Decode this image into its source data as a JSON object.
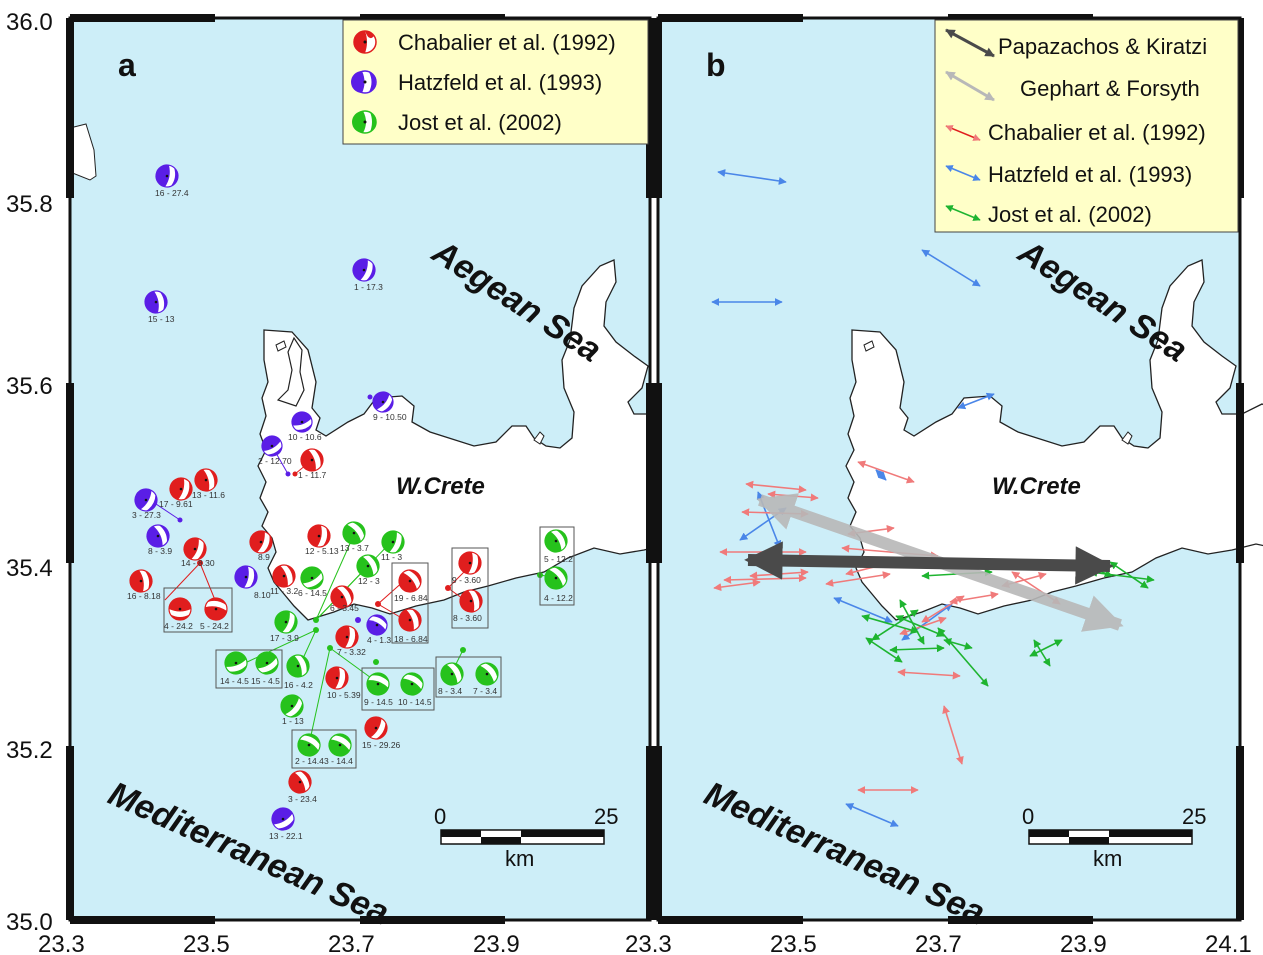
{
  "colors": {
    "sea": "#cdeef8",
    "land": "#ffffff",
    "chabalier": "#e01e1e",
    "hatzfeld": "#5a1ee6",
    "jost": "#26c21c",
    "legend_bg": "#ffffc8",
    "papazachos": "#4a4a4a",
    "gephart": "#b8b8b8",
    "arrow_chabalier": "#f07a7a",
    "arrow_hatzfeld": "#4a86e8",
    "arrow_jost": "#1eb430"
  },
  "axes": {
    "y_ticks": [
      "36.0",
      "35.8",
      "35.6",
      "35.4",
      "35.2",
      "35.0"
    ],
    "x_ticks_a": [
      "23.3",
      "23.5",
      "23.7",
      "23.9"
    ],
    "x_ticks_b": [
      "23.3",
      "23.5",
      "23.7",
      "23.9",
      "24.1"
    ]
  },
  "panel_a": {
    "letter": "a",
    "sea_north": "Aegean Sea",
    "sea_south": "Mediterranean Sea",
    "region": "W.Crete",
    "legend": [
      {
        "label": "Chabalier et al. (1992)",
        "color": "#e01e1e"
      },
      {
        "label": "Hatzfeld et al. (1993)",
        "color": "#5a1ee6"
      },
      {
        "label": "Jost et al. (2002)",
        "color": "#26c21c"
      }
    ],
    "scale": {
      "start": "0",
      "end": "25",
      "unit": "km"
    },
    "events": [
      {
        "label": "16 - 27.4",
        "set": "hatzfeld"
      },
      {
        "label": "15 - 13",
        "set": "hatzfeld"
      },
      {
        "label": "1 - 17.3",
        "set": "hatzfeld"
      },
      {
        "label": "9 - 10.50",
        "set": "hatzfeld"
      },
      {
        "label": "10 - 10.6",
        "set": "hatzfeld"
      },
      {
        "label": "2 - 12.70",
        "set": "hatzfeld"
      },
      {
        "label": "1 - 11.7",
        "set": "chabalier"
      },
      {
        "label": "17 - 9.61",
        "set": "chabalier"
      },
      {
        "label": "13 - 11.6",
        "set": "chabalier"
      },
      {
        "label": "3 - 27.3",
        "set": "hatzfeld"
      },
      {
        "label": "8 - 3.9",
        "set": "hatzfeld"
      },
      {
        "label": "14 - 8.30",
        "set": "chabalier"
      },
      {
        "label": "16 - 8.18",
        "set": "chabalier"
      },
      {
        "label": "4 - 24.2",
        "set": "chabalier"
      },
      {
        "label": "5 - 24.2",
        "set": "chabalier"
      },
      {
        "label": "8.9",
        "set": "chabalier"
      },
      {
        "label": "8.10",
        "set": "hatzfeld"
      },
      {
        "label": "11 - 3.2",
        "set": "chabalier"
      },
      {
        "label": "12 - 5.13",
        "set": "chabalier"
      },
      {
        "label": "13 - 3.7",
        "set": "jost"
      },
      {
        "label": "11 - 3",
        "set": "jost"
      },
      {
        "label": "12 - 3",
        "set": "jost"
      },
      {
        "label": "6 - 14.5",
        "set": "jost"
      },
      {
        "label": "6 - 3.45",
        "set": "chabalier"
      },
      {
        "label": "17 - 3.9",
        "set": "jost"
      },
      {
        "label": "7 - 3.32",
        "set": "chabalier"
      },
      {
        "label": "4 - 1.3",
        "set": "hatzfeld"
      },
      {
        "label": "19 - 6.84",
        "set": "chabalier"
      },
      {
        "label": "18 - 6.84",
        "set": "chabalier"
      },
      {
        "label": "9 - 3.60",
        "set": "chabalier"
      },
      {
        "label": "8 - 3.60",
        "set": "chabalier"
      },
      {
        "label": "5 - 12.2",
        "set": "jost"
      },
      {
        "label": "4 - 12.2",
        "set": "jost"
      },
      {
        "label": "14 - 4.5",
        "set": "jost"
      },
      {
        "label": "15 - 4.5",
        "set": "jost"
      },
      {
        "label": "16 - 4.2",
        "set": "jost"
      },
      {
        "label": "10 - 5.39",
        "set": "chabalier"
      },
      {
        "label": "1 - 13",
        "set": "jost"
      },
      {
        "label": "9 - 14.5",
        "set": "jost"
      },
      {
        "label": "10 - 14.5",
        "set": "jost"
      },
      {
        "label": "8 - 3.4",
        "set": "jost"
      },
      {
        "label": "7 - 3.4",
        "set": "jost"
      },
      {
        "label": "2 - 14.4",
        "set": "jost"
      },
      {
        "label": "3 - 14.4",
        "set": "jost"
      },
      {
        "label": "15 - 29.26",
        "set": "chabalier"
      },
      {
        "label": "3 - 23.4",
        "set": "chabalier"
      },
      {
        "label": "13 - 22.1",
        "set": "hatzfeld"
      }
    ]
  },
  "panel_b": {
    "letter": "b",
    "sea_north": "Aegean Sea",
    "sea_south": "Mediterranean Sea",
    "region": "W.Crete",
    "legend": [
      {
        "label": "Papazachos & Kiratzi",
        "color": "#4a4a4a"
      },
      {
        "label": "Gephart & Forsyth",
        "color": "#b8b8b8"
      },
      {
        "label": "Chabalier et al. (1992)",
        "color": "#f07a7a"
      },
      {
        "label": "Hatzfeld et al. (1993)",
        "color": "#4a86e8"
      },
      {
        "label": "Jost et al. (2002)",
        "color": "#1eb430"
      }
    ],
    "scale": {
      "start": "0",
      "end": "25",
      "unit": "km"
    }
  }
}
